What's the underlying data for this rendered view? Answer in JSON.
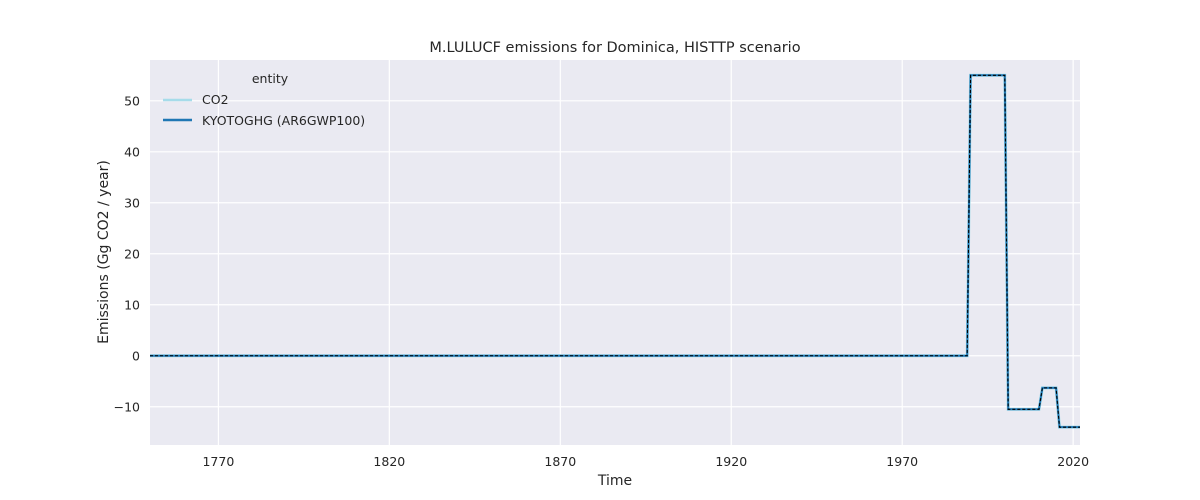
{
  "chart_data": {
    "type": "line",
    "title": "M.LULUCF emissions for Dominica, HISTTP scenario",
    "xlabel": "Time",
    "ylabel": "Emissions (Gg CO2 / year)",
    "xlim": [
      1750,
      2022
    ],
    "ylim": [
      -17.5,
      58
    ],
    "x_ticks": [
      1770,
      1820,
      1870,
      1920,
      1970,
      2020
    ],
    "y_ticks": [
      -10,
      0,
      10,
      20,
      30,
      40,
      50
    ],
    "y_tick_labels": [
      "−10",
      "0",
      "10",
      "20",
      "30",
      "40",
      "50"
    ],
    "grid": true,
    "legend": {
      "title": "entity",
      "placement": "top-left"
    },
    "series": [
      {
        "name": "CO2",
        "color": "#a6dcea",
        "style": "solid",
        "x": [
          1750,
          1989,
          1990,
          2000,
          2001,
          2010,
          2011,
          2015,
          2016,
          2022
        ],
        "y": [
          0,
          0,
          55,
          55,
          -10.5,
          -10.5,
          -6.3,
          -6.3,
          -14,
          -14
        ]
      },
      {
        "name": "KYOTOGHG (AR6GWP100)",
        "color": "#1f77b4",
        "style": "solid",
        "x": [
          1750,
          1989,
          1990,
          2000,
          2001,
          2010,
          2011,
          2015,
          2016,
          2022
        ],
        "y": [
          0,
          0,
          55,
          55,
          -10.5,
          -10.5,
          -6.3,
          -6.3,
          -14,
          -14
        ]
      }
    ],
    "colors": {
      "plot_background": "#eaeaf2",
      "grid": "#ffffff",
      "overlay_dash": "#000000"
    }
  }
}
